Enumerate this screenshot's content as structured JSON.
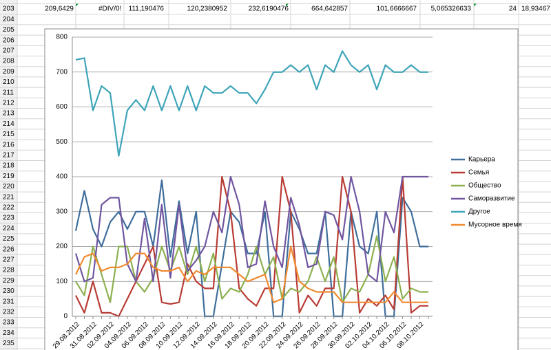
{
  "sheet": {
    "row_numbers": [
      "203",
      "204",
      "205",
      "206",
      "207",
      "208",
      "209",
      "210",
      "211",
      "212",
      "213",
      "214",
      "215",
      "216",
      "217",
      "218",
      "219",
      "220",
      "221",
      "222",
      "223",
      "224",
      "225",
      "226",
      "227",
      "228",
      "229",
      "230",
      "231",
      "232",
      "233",
      "234",
      "235"
    ],
    "row_203": [
      "209,6429",
      "#DIV/0!",
      "111,190476",
      "120,2380952",
      "232,6190476",
      "664,642857",
      "101,6666667",
      "5,065326633",
      "24",
      "18,93467"
    ]
  },
  "chart_data": {
    "type": "line",
    "categories": [
      "29.08.2012",
      null,
      "31.08.2012",
      null,
      "02.09.2012",
      null,
      "04.09.2012",
      null,
      "06.09.2012",
      null,
      "08.09.2012",
      null,
      "10.09.2012",
      null,
      "12.09.2012",
      null,
      "14.09.2012",
      null,
      "16.09.2012",
      null,
      "18.09.2012",
      null,
      "20.09.2012",
      null,
      "22.09.2012",
      null,
      "24.09.2012",
      null,
      "26.09.2012",
      null,
      "28.09.2012",
      null,
      "30.09.2012",
      null,
      "02.10.2012",
      null,
      "04.10.2012",
      null,
      "06.10.2012",
      null,
      "08.10.2012",
      null
    ],
    "ylim": [
      0,
      800
    ],
    "yticks": [
      0,
      100,
      200,
      300,
      400,
      500,
      600,
      700,
      800
    ],
    "grid": true,
    "legend": "right",
    "series": [
      {
        "name": "Карьера",
        "color": "#3f6e9c",
        "values": [
          245,
          360,
          250,
          200,
          270,
          300,
          250,
          300,
          300,
          200,
          390,
          170,
          330,
          180,
          300,
          0,
          0,
          150,
          300,
          270,
          180,
          180,
          300,
          0,
          0,
          300,
          250,
          180,
          180,
          300,
          0,
          0,
          300,
          200,
          180,
          300,
          0,
          0,
          340,
          300,
          200,
          200
        ]
      },
      {
        "name": "Семья",
        "color": "#b83c35",
        "values": [
          60,
          10,
          100,
          10,
          10,
          0,
          50,
          100,
          150,
          200,
          40,
          35,
          40,
          150,
          100,
          80,
          80,
          400,
          300,
          80,
          50,
          30,
          80,
          80,
          400,
          300,
          10,
          60,
          30,
          80,
          80,
          400,
          300,
          10,
          50,
          30,
          60,
          20,
          400,
          10,
          30,
          30
        ]
      },
      {
        "name": "Общество",
        "color": "#8db050",
        "values": [
          100,
          60,
          200,
          120,
          40,
          200,
          200,
          100,
          70,
          110,
          200,
          130,
          200,
          120,
          200,
          100,
          180,
          50,
          80,
          70,
          120,
          200,
          120,
          170,
          50,
          80,
          70,
          100,
          170,
          100,
          170,
          40,
          80,
          70,
          120,
          230,
          100,
          170,
          50,
          80,
          70,
          70
        ]
      },
      {
        "name": "Саморазвитие",
        "color": "#7156a0",
        "values": [
          180,
          100,
          110,
          320,
          340,
          340,
          150,
          100,
          280,
          100,
          320,
          110,
          320,
          130,
          160,
          200,
          300,
          240,
          400,
          320,
          140,
          150,
          330,
          200,
          140,
          340,
          260,
          140,
          150,
          300,
          290,
          220,
          400,
          300,
          120,
          100,
          300,
          240,
          400,
          400,
          400,
          400
        ]
      },
      {
        "name": "Другое",
        "color": "#3ea4b8",
        "values": [
          735,
          740,
          590,
          660,
          640,
          460,
          590,
          620,
          590,
          660,
          590,
          660,
          590,
          660,
          590,
          660,
          640,
          640,
          660,
          640,
          640,
          610,
          650,
          700,
          700,
          720,
          700,
          720,
          650,
          720,
          700,
          760,
          720,
          700,
          720,
          650,
          720,
          700,
          700,
          720,
          700,
          700
        ]
      },
      {
        "name": "Мусорное время",
        "color": "#f08a30",
        "values": [
          120,
          170,
          180,
          130,
          140,
          140,
          150,
          180,
          180,
          140,
          130,
          130,
          140,
          100,
          130,
          120,
          140,
          140,
          140,
          120,
          100,
          110,
          120,
          40,
          50,
          200,
          100,
          80,
          70,
          70,
          70,
          40,
          40,
          40,
          40,
          40,
          40,
          70,
          40,
          40,
          40,
          40
        ]
      }
    ]
  }
}
